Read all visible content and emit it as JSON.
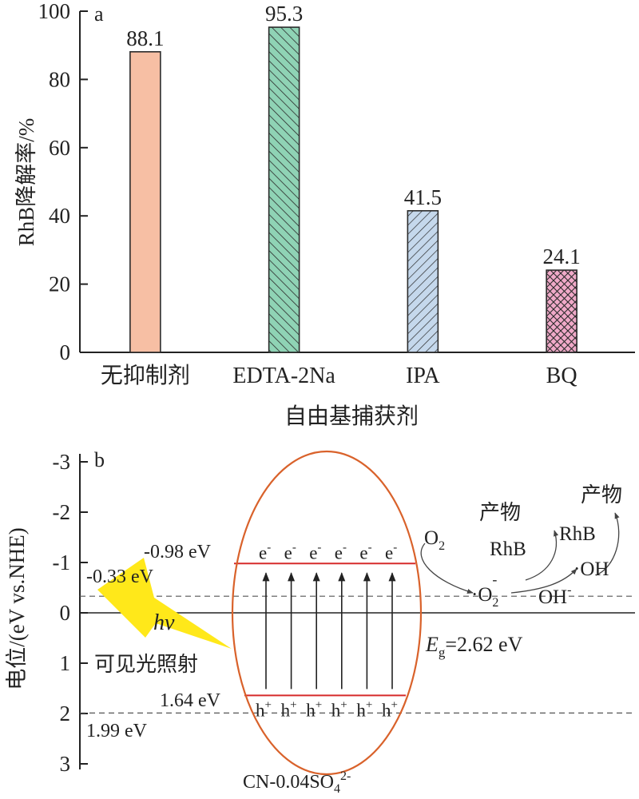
{
  "chart_data": [
    {
      "type": "bar",
      "panel_label": "a",
      "categories": [
        "无抑制剂",
        "EDTA-2Na",
        "IPA",
        "BQ"
      ],
      "values": [
        88.1,
        95.3,
        41.5,
        24.1
      ],
      "value_labels": [
        "88.1",
        "95.3",
        "41.5",
        "24.1"
      ],
      "colors": [
        "#f7bfa4",
        "#8fd3b5",
        "#c5d8ec",
        "#f0a9c8"
      ],
      "patterns": [
        "solid",
        "diagonal",
        "diagonal",
        "crosshatch"
      ],
      "xlabel": "自由基捕获剂",
      "ylabel": "RhB降解率/%",
      "ylim": [
        0,
        100
      ],
      "yticks": [
        "0",
        "20",
        "40",
        "60",
        "80",
        "100"
      ]
    },
    {
      "type": "diagram",
      "panel_label": "b",
      "ylabel": "电位/(eV vs.NHE)",
      "ylim": [
        -3,
        3
      ],
      "yticks": [
        "-3",
        "-2",
        "-1",
        "0",
        "1",
        "2",
        "3"
      ],
      "material": "CN-0.04SO",
      "material_sub": "4",
      "material_sup": "2-",
      "cb_label": "-0.98 eV",
      "cb_value": -0.98,
      "vb_label": "1.64 eV",
      "vb_value": 1.64,
      "ref_upper_label": "-0.33 eV",
      "ref_upper_value": -0.33,
      "ref_lower_label": "1.99 eV",
      "ref_lower_value": 1.99,
      "bandgap": {
        "E": "E",
        "sub": "g",
        "rest": "=2.62 eV"
      },
      "electron": "e",
      "electron_sup": "-",
      "hole": "h",
      "hole_sup": "+",
      "carrier_count": 6,
      "light": {
        "symbol": "hv",
        "text": "可见光照射",
        "color": "#ffe81a"
      },
      "species": {
        "o2": "O",
        "o2_sub": "2",
        "superoxide": "·O",
        "superoxide_sub": "2",
        "superoxide_sup": "-",
        "oh_radical": "·OH",
        "oh_ion": "OH",
        "oh_ion_sup": "-",
        "rhb_left": "RhB",
        "rhb_right": "RhB",
        "product_left": "产物",
        "product_right": "产物"
      },
      "colors": {
        "ellipse": "#d9622b",
        "band": "#d62b2b"
      }
    }
  ]
}
